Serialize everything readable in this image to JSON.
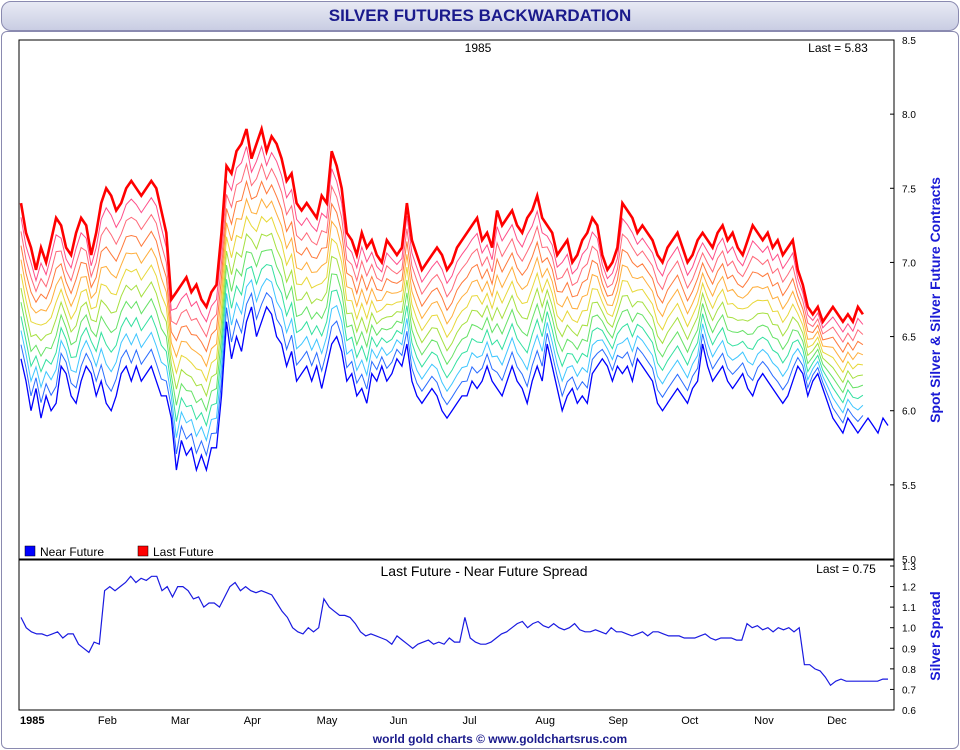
{
  "title": "SILVER FUTURES BACKWARDATION",
  "footer": "world gold charts © www.goldchartsrus.com",
  "chart_data": [
    {
      "type": "line",
      "year_label": "1985",
      "last_label": "Last = 5.83",
      "ylabel": "Spot Silver & Silver Future Contracts",
      "ylim": [
        5.0,
        8.5
      ],
      "yticks": [
        "8.5",
        "8.0",
        "7.5",
        "7.0",
        "6.5",
        "6.0",
        "5.5",
        "5.0"
      ],
      "ytick_values": [
        8.5,
        8.0,
        7.5,
        7.0,
        6.5,
        6.0,
        5.5,
        5.0
      ],
      "legend": [
        {
          "name": "Near Future",
          "color": "#0000ff"
        },
        {
          "name": "Last Future",
          "color": "#ff0000"
        }
      ],
      "legend_position": "bottom-left",
      "num_contracts": 12,
      "colors": [
        "#0000ff",
        "#2a6cff",
        "#3fc6ff",
        "#33e0a0",
        "#66e266",
        "#a6e040",
        "#e8d83a",
        "#ffae3c",
        "#ff7a3c",
        "#ff6a7a",
        "#ff4f8a",
        "#ff0000"
      ],
      "series": [
        {
          "name": "Near Future",
          "values": [
            6.35,
            6.2,
            6.0,
            6.15,
            5.95,
            6.1,
            6.0,
            6.05,
            6.3,
            6.25,
            6.1,
            6.05,
            6.2,
            6.3,
            6.25,
            6.1,
            6.2,
            6.05,
            6.0,
            6.1,
            6.25,
            6.3,
            6.2,
            6.3,
            6.2,
            6.25,
            6.3,
            6.2,
            6.1,
            6.1,
            5.95,
            5.6,
            5.8,
            5.7,
            5.75,
            5.6,
            5.7,
            5.6,
            5.75,
            5.75,
            6.1,
            6.6,
            6.35,
            6.5,
            6.4,
            6.6,
            6.7,
            6.5,
            6.6,
            6.7,
            6.65,
            6.5,
            6.45,
            6.3,
            6.4,
            6.2,
            6.25,
            6.3,
            6.2,
            6.3,
            6.15,
            6.3,
            6.45,
            6.5,
            6.4,
            6.2,
            6.25,
            6.1,
            6.15,
            6.05,
            6.25,
            6.2,
            6.3,
            6.2,
            6.25,
            6.35,
            6.3,
            6.45,
            6.2,
            6.1,
            6.05,
            6.1,
            6.15,
            6.1,
            6.0,
            5.95,
            6.0,
            6.05,
            6.1,
            6.1,
            6.2,
            6.15,
            6.2,
            6.3,
            6.2,
            6.15,
            6.1,
            6.2,
            6.3,
            6.2,
            6.15,
            6.05,
            6.2,
            6.3,
            6.2,
            6.45,
            6.3,
            6.15,
            6.0,
            6.1,
            6.15,
            6.05,
            6.1,
            6.05,
            6.25,
            6.3,
            6.35,
            6.3,
            6.2,
            6.3,
            6.25,
            6.3,
            6.2,
            6.35,
            6.3,
            6.25,
            6.2,
            6.05,
            6.0,
            6.05,
            6.1,
            6.15,
            6.1,
            6.05,
            6.15,
            6.2,
            6.45,
            6.3,
            6.2,
            6.25,
            6.3,
            6.2,
            6.15,
            6.2,
            6.25,
            6.15,
            6.1,
            6.2,
            6.25,
            6.2,
            6.15,
            6.1,
            6.05,
            6.1,
            6.2,
            6.3,
            6.25,
            6.1,
            6.2,
            6.25,
            6.15,
            6.05,
            5.95,
            5.9,
            5.85,
            5.95,
            5.9,
            5.85,
            5.9,
            5.95,
            5.9,
            5.85,
            5.95,
            5.9
          ]
        },
        {
          "name": "Last Future",
          "values": [
            7.4,
            7.2,
            7.1,
            6.95,
            7.1,
            7.0,
            7.15,
            7.3,
            7.25,
            7.1,
            7.05,
            7.2,
            7.3,
            7.25,
            7.05,
            7.2,
            7.4,
            7.5,
            7.45,
            7.35,
            7.4,
            7.5,
            7.55,
            7.5,
            7.45,
            7.5,
            7.55,
            7.5,
            7.35,
            7.2,
            6.75,
            6.8,
            6.85,
            6.9,
            6.8,
            6.85,
            6.75,
            6.7,
            6.8,
            6.85,
            7.2,
            7.65,
            7.6,
            7.75,
            7.8,
            7.9,
            7.7,
            7.8,
            7.9,
            7.75,
            7.85,
            7.8,
            7.7,
            7.55,
            7.6,
            7.4,
            7.35,
            7.4,
            7.35,
            7.3,
            7.45,
            7.4,
            7.75,
            7.65,
            7.5,
            7.2,
            7.15,
            7.05,
            7.2,
            7.1,
            7.15,
            7.05,
            7.0,
            7.15,
            7.1,
            7.05,
            7.1,
            7.4,
            7.15,
            7.05,
            6.95,
            7.0,
            7.05,
            7.1,
            7.05,
            6.95,
            7.0,
            7.1,
            7.15,
            7.2,
            7.25,
            7.3,
            7.15,
            7.2,
            7.1,
            7.35,
            7.25,
            7.3,
            7.35,
            7.25,
            7.2,
            7.3,
            7.35,
            7.45,
            7.3,
            7.25,
            7.2,
            7.05,
            7.1,
            7.15,
            7.0,
            7.05,
            7.15,
            7.2,
            7.3,
            7.25,
            7.05,
            6.95,
            7.0,
            7.1,
            7.4,
            7.35,
            7.3,
            7.2,
            7.25,
            7.2,
            7.15,
            7.05,
            7.0,
            7.1,
            7.15,
            7.2,
            7.1,
            7.0,
            7.05,
            7.15,
            7.2,
            7.15,
            7.1,
            7.2,
            7.25,
            7.15,
            7.2,
            7.1,
            7.05,
            7.15,
            7.25,
            7.2,
            7.15,
            7.2,
            7.1,
            7.15,
            7.05,
            7.1,
            7.15,
            6.95,
            6.85,
            6.7,
            6.65,
            6.7,
            6.6,
            6.65,
            6.7,
            6.65,
            6.6,
            6.65,
            6.6,
            6.7,
            6.65
          ]
        }
      ]
    },
    {
      "type": "line",
      "title": "Last Future - Near Future Spread",
      "last_label": "Last = 0.75",
      "ylabel": "Silver Spread",
      "ylim": [
        0.6,
        1.3
      ],
      "yticks": [
        "1.3",
        "1.2",
        "1.1",
        "1.0",
        "0.9",
        "0.8",
        "0.7",
        "0.6"
      ],
      "ytick_values": [
        1.3,
        1.2,
        1.1,
        1.0,
        0.9,
        0.8,
        0.7,
        0.6
      ],
      "series": [
        {
          "name": "Spread",
          "values": [
            1.05,
            1.0,
            0.98,
            0.97,
            0.97,
            0.96,
            0.97,
            0.98,
            0.95,
            0.97,
            0.97,
            0.92,
            0.9,
            0.88,
            0.93,
            0.92,
            1.18,
            1.2,
            1.18,
            1.2,
            1.22,
            1.25,
            1.22,
            1.24,
            1.23,
            1.25,
            1.25,
            1.18,
            1.2,
            1.15,
            1.2,
            1.2,
            1.18,
            1.14,
            1.15,
            1.1,
            1.12,
            1.12,
            1.1,
            1.15,
            1.2,
            1.22,
            1.18,
            1.2,
            1.18,
            1.17,
            1.18,
            1.17,
            1.16,
            1.12,
            1.08,
            1.05,
            1.0,
            0.98,
            0.97,
            1.0,
            0.98,
            1.0,
            1.14,
            1.1,
            1.08,
            1.06,
            1.06,
            1.05,
            1.02,
            0.98,
            0.96,
            0.97,
            0.96,
            0.95,
            0.94,
            0.92,
            0.96,
            0.94,
            0.92,
            0.9,
            0.92,
            0.93,
            0.94,
            0.92,
            0.93,
            0.92,
            0.95,
            0.93,
            0.93,
            1.05,
            0.95,
            0.93,
            0.92,
            0.92,
            0.93,
            0.95,
            0.97,
            0.98,
            1.0,
            1.02,
            1.03,
            1.0,
            1.02,
            1.03,
            1.01,
            1.0,
            1.02,
            1.0,
            0.99,
            1.0,
            1.02,
            0.99,
            0.98,
            0.98,
            0.99,
            0.98,
            0.97,
            1.0,
            0.98,
            0.98,
            0.97,
            0.96,
            0.97,
            0.98,
            0.96,
            0.98,
            0.98,
            0.97,
            0.96,
            0.96,
            0.96,
            0.95,
            0.95,
            0.95,
            0.96,
            0.97,
            0.95,
            0.94,
            0.95,
            0.95,
            0.95,
            0.94,
            0.94,
            1.02,
            1.0,
            1.01,
            0.99,
            1.0,
            0.98,
            1.0,
            0.99,
            1.0,
            0.98,
            1.0,
            0.82,
            0.82,
            0.8,
            0.79,
            0.76,
            0.72,
            0.74,
            0.75,
            0.74,
            0.74,
            0.74,
            0.74,
            0.74,
            0.74,
            0.74,
            0.75,
            0.75
          ]
        }
      ]
    }
  ],
  "x_axis": {
    "labels": [
      "1985",
      "Feb",
      "Mar",
      "Apr",
      "May",
      "Jun",
      "Jul",
      "Aug",
      "Sep",
      "Oct",
      "Nov",
      "Dec"
    ]
  }
}
